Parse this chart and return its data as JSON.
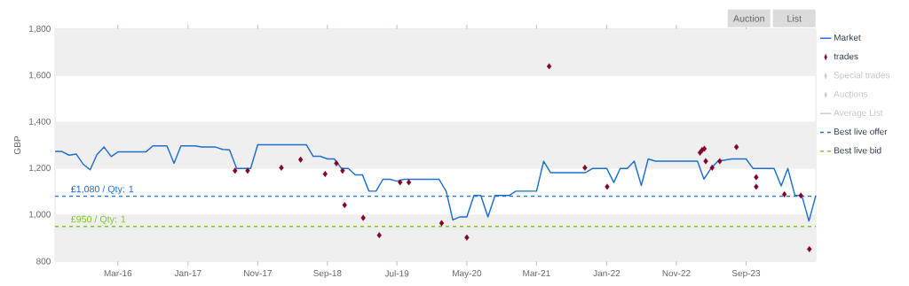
{
  "chart_data": {
    "type": "line",
    "ylabel": "GBP",
    "xlim": [
      "2015-06",
      "2024-07"
    ],
    "xticks": [
      {
        "value": "2016-03",
        "label": "Mar-16"
      },
      {
        "value": "2017-01",
        "label": "Jan-17"
      },
      {
        "value": "2017-11",
        "label": "Nov-17"
      },
      {
        "value": "2018-09",
        "label": "Sep-18"
      },
      {
        "value": "2019-07",
        "label": "Jul-19"
      },
      {
        "value": "2020-05",
        "label": "May-20"
      },
      {
        "value": "2021-03",
        "label": "Mar-21"
      },
      {
        "value": "2022-01",
        "label": "Jan-22"
      },
      {
        "value": "2022-11",
        "label": "Nov-22"
      },
      {
        "value": "2023-09",
        "label": "Sep-23"
      }
    ],
    "ylim": [
      800,
      1800
    ],
    "yticks": [
      800,
      {
        "value": 1000,
        "label": "1,000"
      },
      {
        "value": 1200,
        "label": "1,200"
      },
      {
        "value": 1400,
        "label": "1,400"
      },
      {
        "value": 1600,
        "label": "1,600"
      },
      {
        "value": 1800,
        "label": "1,800"
      }
    ],
    "grid": "y",
    "legend": "right",
    "bands": [
      {
        "axis": "y",
        "from": 800,
        "to": 1000,
        "color": "#efefef"
      },
      {
        "axis": "y",
        "from": 1200,
        "to": 1400,
        "color": "#efefef"
      },
      {
        "axis": "y",
        "from": 1600,
        "to": 1800,
        "color": "#efefef"
      }
    ],
    "series": [
      {
        "name": "Market",
        "color": "#1f6fd1",
        "x": [
          "2015-06",
          "2015-07",
          "2015-08",
          "2015-09",
          "2015-10",
          "2015-11",
          "2015-12",
          "2016-01",
          "2016-02",
          "2016-03",
          "2016-07",
          "2016-08",
          "2016-10",
          "2016-11",
          "2016-12",
          "2017-02",
          "2017-03",
          "2017-05",
          "2017-06",
          "2017-07",
          "2017-08",
          "2017-10",
          "2017-11",
          "2018-06",
          "2018-07",
          "2018-08",
          "2018-09",
          "2018-10",
          "2018-11",
          "2018-12",
          "2019-01",
          "2019-02",
          "2019-03",
          "2019-04",
          "2019-05",
          "2019-06",
          "2019-07",
          "2019-08",
          "2020-01",
          "2020-02",
          "2020-03",
          "2020-04",
          "2020-05",
          "2020-06",
          "2020-07",
          "2020-08",
          "2020-09",
          "2020-11",
          "2020-12",
          "2021-03",
          "2021-04",
          "2021-05",
          "2021-10",
          "2021-11",
          "2022-01",
          "2022-02",
          "2022-03",
          "2022-04",
          "2022-05",
          "2022-06",
          "2022-07",
          "2022-08",
          "2023-02",
          "2023-03",
          "2023-04",
          "2023-05",
          "2023-07",
          "2023-09",
          "2023-10",
          "2024-01",
          "2024-02",
          "2024-03",
          "2024-04",
          "2024-05",
          "2024-06",
          "2024-07"
        ],
        "values": [
          1273,
          1273,
          1257,
          1262,
          1219,
          1194,
          1260,
          1292,
          1251,
          1271,
          1271,
          1297,
          1297,
          1222,
          1297,
          1297,
          1292,
          1292,
          1282,
          1280,
          1200,
          1200,
          1302,
          1302,
          1252,
          1252,
          1241,
          1241,
          1200,
          1200,
          1172,
          1172,
          1102,
          1102,
          1153,
          1153,
          1145,
          1153,
          1153,
          1101,
          978,
          991,
          991,
          1083,
          1083,
          991,
          1083,
          1083,
          1102,
          1102,
          1231,
          1182,
          1182,
          1200,
          1200,
          1139,
          1200,
          1200,
          1231,
          1126,
          1241,
          1231,
          1231,
          1154,
          1200,
          1231,
          1241,
          1241,
          1200,
          1200,
          1124,
          1200,
          1083,
          1083,
          973,
          1083
        ]
      },
      {
        "name": "trades",
        "type": "scatter",
        "marker": "diamond",
        "color": "#80002a",
        "x": [
          "2017-07-25",
          "2017-09-18",
          "2018-02-12",
          "2018-05-07",
          "2018-08-22",
          "2018-10-10",
          "2018-11-06",
          "2018-11-15",
          "2019-02-04",
          "2019-04-15",
          "2019-07-15",
          "2019-08-22",
          "2020-01-12",
          "2020-05-01",
          "2021-04-25",
          "2021-09-28",
          "2022-01-03",
          "2023-02-12",
          "2023-02-21",
          "2023-03-03",
          "2023-03-09",
          "2023-04-06",
          "2023-05-09",
          "2023-07-21",
          "2023-10-15",
          "2023-10-15",
          "2024-02-15",
          "2024-04-27",
          "2024-06-03"
        ],
        "values": [
          1190,
          1190,
          1203,
          1238,
          1176,
          1222,
          1190,
          1042,
          987,
          912,
          1140,
          1140,
          964,
          902,
          1640,
          1203,
          1121,
          1268,
          1279,
          1285,
          1231,
          1203,
          1231,
          1292,
          1162,
          1121,
          1088,
          1083,
          852
        ]
      },
      {
        "name": "Special trades",
        "type": "scatter",
        "marker": "diamond",
        "color": "#cccccc"
      },
      {
        "name": "Auctions",
        "type": "scatter",
        "marker": "diamond",
        "color": "#cccccc"
      },
      {
        "name": "Average List",
        "type": "line",
        "color": "#cccccc"
      },
      {
        "name": "Best live offer",
        "type": "line",
        "line_style": "dashed",
        "color": "#1f6fd1",
        "x": [
          "2015-06",
          "2024-07"
        ],
        "values": [
          1080,
          1080
        ]
      },
      {
        "name": "Best live bid",
        "type": "line",
        "line_style": "dashed",
        "color": "#7cc52a",
        "x": [
          "2015-06",
          "2024-07"
        ],
        "values": [
          950,
          950
        ]
      }
    ],
    "annotations": [
      {
        "text": "£1,080 / Qty: 1",
        "y": 1080
      },
      {
        "text": "£950 / Qty: 1",
        "y": 950
      },
      "Auction",
      "List"
    ]
  }
}
